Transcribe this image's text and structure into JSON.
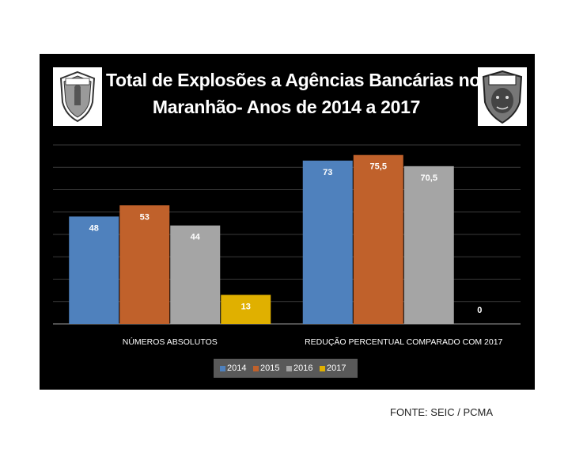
{
  "title_lines": [
    "Total de Explosões a Agências Bancárias no",
    "Maranhão- Anos de 2014 a 2017"
  ],
  "logos": {
    "left": {
      "name": "policia-civil-badge",
      "text": "POLICIA CIVIL"
    },
    "right": {
      "name": "seic-tiger-badge",
      "text": "SEIC"
    }
  },
  "source_text": "FONTE: SEIC / PCMA",
  "colors": {
    "panel_bg": "#000000",
    "gridline": "#3a3a3a",
    "axis_text": "#ffffff",
    "legend_bg": "#595959"
  },
  "chart_data": {
    "type": "bar",
    "title": "Total de Explosões a Agências Bancárias no Maranhão- Anos de 2014 a 2017",
    "categories": [
      "NÚMEROS ABSOLUTOS",
      "REDUÇÃO PERCENTUAL COMPARADO COM 2017"
    ],
    "series": [
      {
        "name": "2014",
        "color": "#4f81bd",
        "values": [
          48,
          73
        ],
        "labels": [
          "48",
          "73"
        ]
      },
      {
        "name": "2015",
        "color": "#c0612b",
        "values": [
          53,
          75.5
        ],
        "labels": [
          "53",
          "75,5"
        ]
      },
      {
        "name": "2016",
        "color": "#a5a5a5",
        "values": [
          44,
          70.5
        ],
        "labels": [
          "44",
          "70,5"
        ]
      },
      {
        "name": "2017",
        "color": "#e0b000",
        "values": [
          13,
          0
        ],
        "labels": [
          "13",
          "0"
        ]
      }
    ],
    "ylim": [
      0,
      80
    ],
    "grid": true,
    "legend_position": "bottom"
  }
}
